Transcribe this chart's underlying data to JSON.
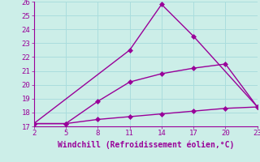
{
  "xlabel": "Windchill (Refroidissement éolien,°C)",
  "bg_color": "#cceee8",
  "line_color": "#990099",
  "grid_color": "#aadddd",
  "text_color": "#990099",
  "xlim": [
    2,
    23
  ],
  "ylim": [
    17,
    26
  ],
  "xticks": [
    2,
    5,
    8,
    11,
    14,
    17,
    20,
    23
  ],
  "yticks": [
    17,
    18,
    19,
    20,
    21,
    22,
    23,
    24,
    25,
    26
  ],
  "line1_x": [
    2,
    11,
    14,
    17,
    23
  ],
  "line1_y": [
    17.2,
    22.5,
    25.8,
    23.5,
    18.4
  ],
  "line2_x": [
    2,
    5,
    8,
    11,
    14,
    17,
    20,
    23
  ],
  "line2_y": [
    17.2,
    17.2,
    18.8,
    20.2,
    20.8,
    21.2,
    21.5,
    18.4
  ],
  "line3_x": [
    2,
    5,
    8,
    11,
    14,
    17,
    20,
    23
  ],
  "line3_y": [
    17.2,
    17.2,
    17.5,
    17.7,
    17.9,
    18.1,
    18.3,
    18.4
  ],
  "markersize": 3,
  "linewidth": 1.0
}
